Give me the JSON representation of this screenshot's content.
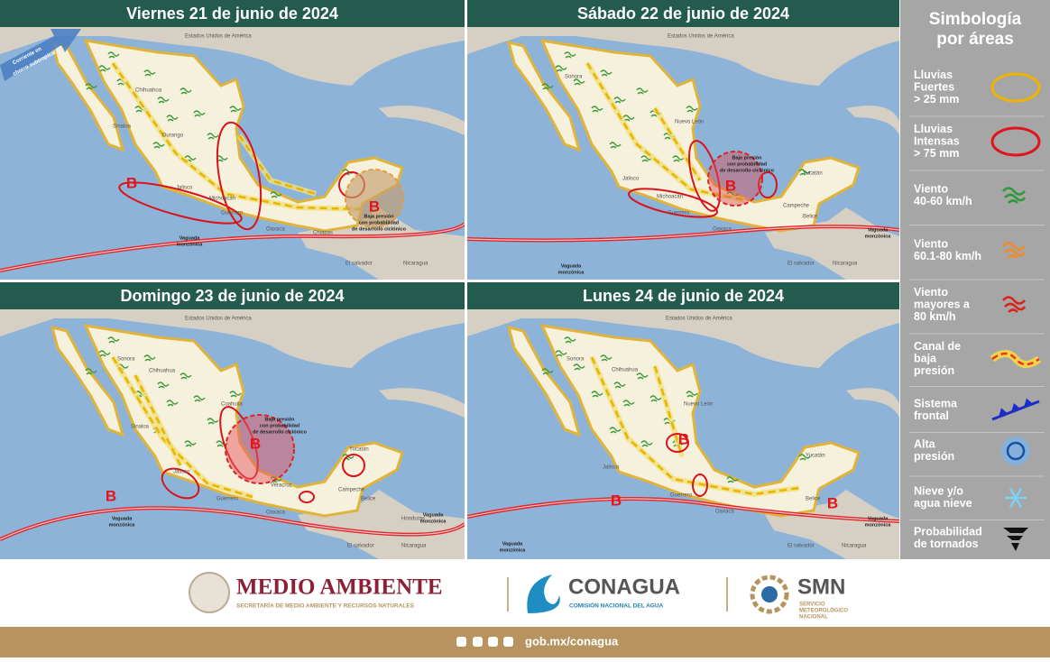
{
  "panels": [
    {
      "title": "Viernes 21 de junio de 2024",
      "labels": [
        "Estados Unidos de América",
        "Chihuahua",
        "Sinaloa",
        "Durango",
        "Jalisco",
        "Michoacán",
        "Guerrero",
        "Oaxaca",
        "Chiapas",
        "B",
        "B",
        "Baja presión",
        "con probabilidad",
        "de desarrollo ciclónico",
        "Vaguada",
        "monzónica",
        "El salvador",
        "Nicaragua",
        "Corriente en",
        "chorro subtropical"
      ]
    },
    {
      "title": "Sábado 22 de junio de 2024",
      "labels": [
        "Estados Unidos de América",
        "Sonora",
        "Nuevo León",
        "Jalisco",
        "Michoacán",
        "Guerrero",
        "Oaxaca",
        "Campeche",
        "Yucatán",
        "Belice",
        "B",
        "Baja presión",
        "con probabilidad",
        "de desarrollo ciclónico",
        "Vaguada",
        "monzónica",
        "Vaguada",
        "monzónica",
        "El salvador",
        "Nicaragua"
      ]
    },
    {
      "title": "Domingo 23 de junio de 2024",
      "labels": [
        "Estados Unidos de América",
        "Sonora",
        "Chihuahua",
        "Coahuila",
        "Sinaloa",
        "Jalisco",
        "Guerrero",
        "Veracruz",
        "Oaxaca",
        "Campeche",
        "Yucatán",
        "Belice",
        "Honduras",
        "B",
        "Baja presión",
        "con probabilidad",
        "de desarrollo ciclónico",
        "B",
        "Vaguada",
        "monzónica",
        "Vaguada",
        "monzónica",
        "El salvador",
        "Nicaragua"
      ]
    },
    {
      "title": "Lunes 24 de junio de 2024",
      "labels": [
        "Estados Unidos de América",
        "Sonora",
        "Chihuahua",
        "Nuevo León",
        "Jalisco",
        "Guerrero",
        "Oaxaca",
        "Yucatán",
        "Belice",
        "B",
        "B",
        "B",
        "Vaguada",
        "monzónica",
        "Vaguada",
        "monzónica",
        "El salvador",
        "Nicaragua"
      ]
    }
  ],
  "legend": {
    "title": [
      "Simbología",
      "por áreas"
    ],
    "items": [
      [
        "Lluvias",
        "Fuertes",
        "> 25 mm"
      ],
      [
        "Lluvias",
        "Intensas",
        "> 75 mm"
      ],
      [
        "Viento",
        "40-60 km/h"
      ],
      [
        "Viento",
        "60.1-80 km/h"
      ],
      [
        "Viento",
        "mayores a",
        "80 km/h"
      ],
      [
        "Canal de",
        "baja",
        "presión"
      ],
      [
        "Sistema",
        "frontal"
      ],
      [
        "Alta",
        "presión"
      ],
      [
        "Nieve y/o",
        "agua nieve"
      ],
      [
        "Probabilidad",
        "de tornados"
      ]
    ]
  },
  "footer": {
    "semarnat": "MEDIO AMBIENTE",
    "semarnat_sub": "SECRETARÍA DE MEDIO AMBIENTE Y RECURSOS NATURALES",
    "conagua": "CONAGUA",
    "conagua_sub": "COMISIÓN NACIONAL DEL AGUA",
    "smn": "SMN",
    "smn_sub": [
      "SERVICIO",
      "METEOROLÓGICO",
      "NACIONAL"
    ],
    "url": "gob.mx/conagua"
  }
}
